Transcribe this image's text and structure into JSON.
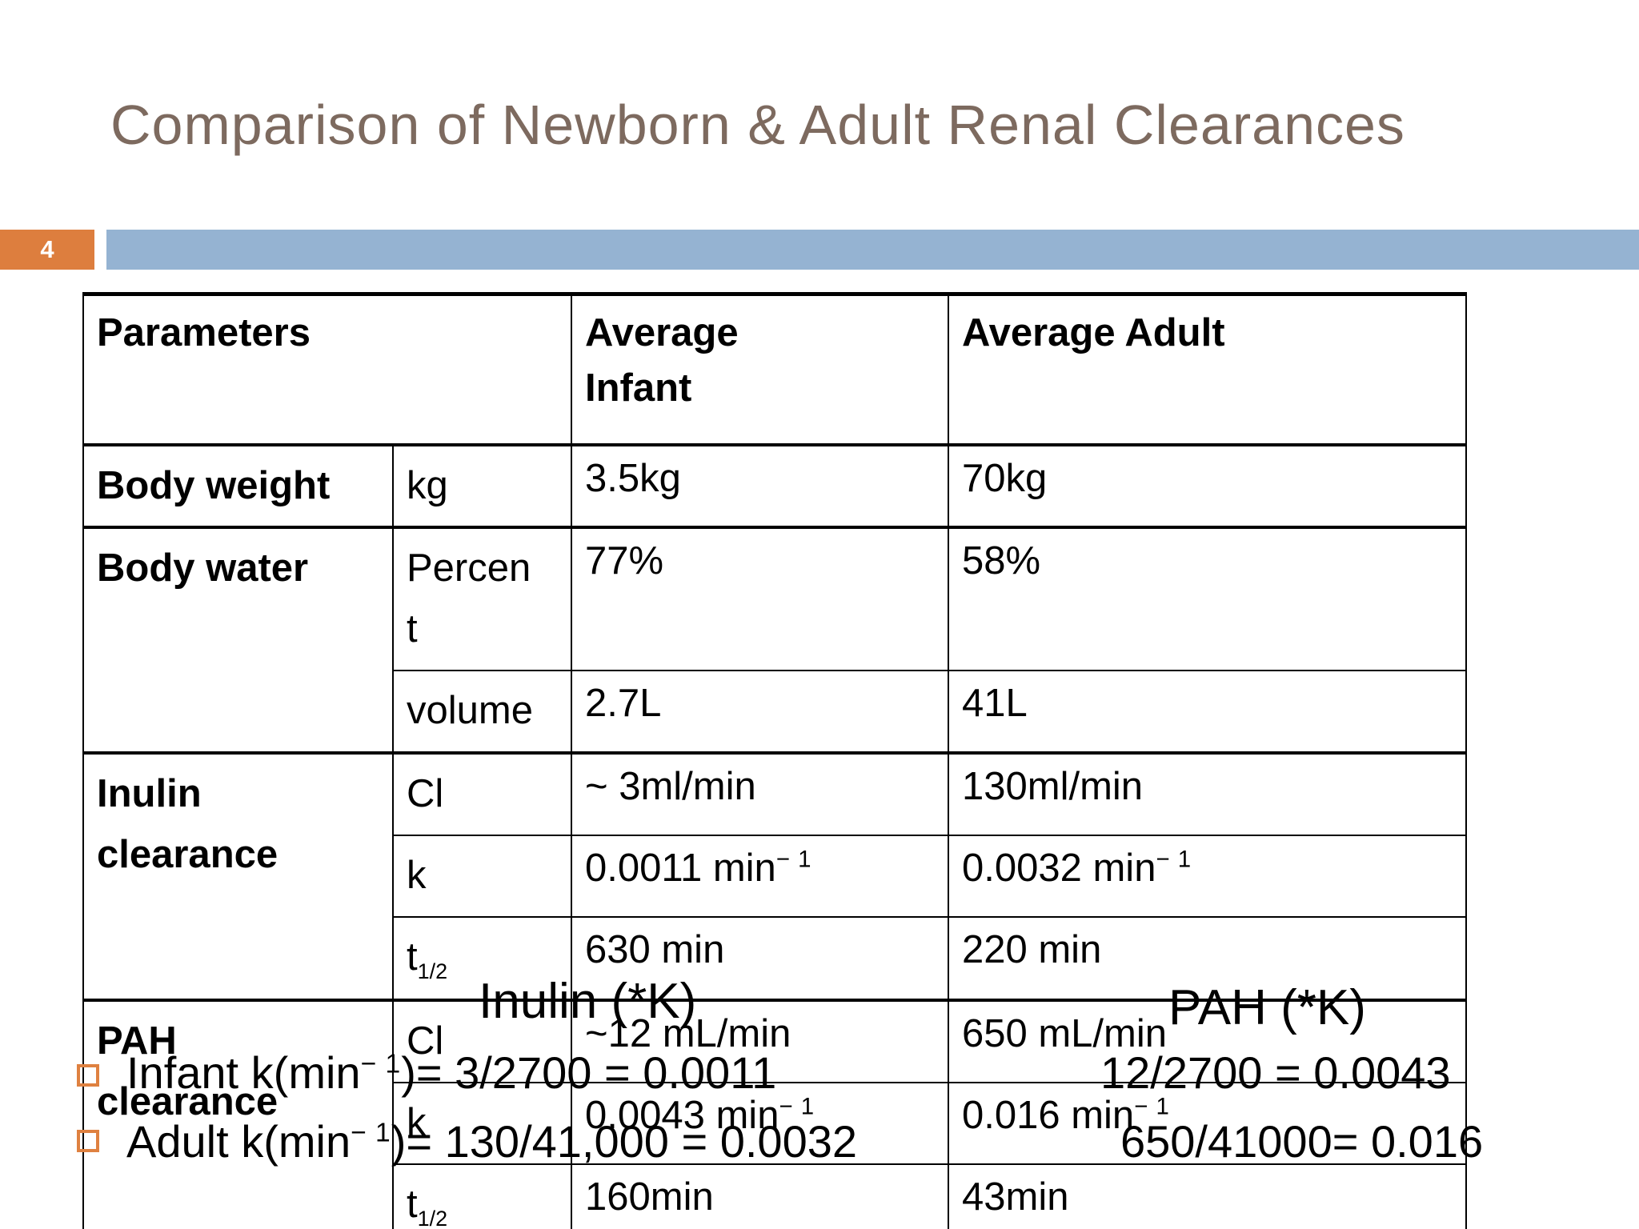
{
  "slide": {
    "title": "Comparison of Newborn & Adult Renal Clearances",
    "slide_number": "4"
  },
  "colors": {
    "accent_orange": "#dd7e3e",
    "accent_blue": "#95b3d2",
    "title_brown": "#7d6a5f",
    "bullet_orange": "#df8140"
  },
  "table": {
    "header": {
      "parameters": "Parameters",
      "infant": "Average\nInfant",
      "adult": "Average Adult"
    },
    "body_weight": {
      "label": "Body weight",
      "unit": "kg",
      "infant": "3.5kg",
      "adult": "70kg"
    },
    "body_water": {
      "label": "Body water",
      "percent": {
        "sub": "Percen\nt",
        "infant": "77%",
        "adult": "58%"
      },
      "volume": {
        "sub": "volume",
        "infant": "2.7L",
        "adult": "41L"
      }
    },
    "inulin_clearance": {
      "label": "Inulin\nclearance",
      "cl": {
        "sub": "Cl",
        "infant": "~ 3ml/min",
        "adult": "130ml/min"
      },
      "k": {
        "sub": "k",
        "infant": "0.0011 min^{− 1}",
        "adult": "0.0032 min^{− 1}"
      },
      "t_half": {
        "sub": "t_{1/2}",
        "infant": "630 min",
        "adult": "220 min"
      }
    },
    "pah_clearance": {
      "label": "PAH\nclearance",
      "cl": {
        "sub": "Cl",
        "infant": "~12 mL/min",
        "adult": "650 mL/min"
      },
      "k": {
        "sub": "k",
        "infant": "0.0043 min^{− 1}",
        "adult": "0.016 min^{− 1}"
      },
      "t_half": {
        "sub": "t_{1/2}",
        "infant": "160min",
        "adult": "43min"
      }
    }
  },
  "annotations": {
    "inulin_k_label": "Inulin (*K)",
    "pah_k_label": "PAH (*K)",
    "infant_calc_inulin": "Infant k(min^{− 1})= 3/2700 = 0.0011",
    "infant_calc_pah": "12/2700 = 0.0043",
    "adult_calc_inulin": "Adult k(min^{− 1})= 130/41,000 = 0.0032",
    "adult_calc_pah": "650/41000= 0.016"
  }
}
